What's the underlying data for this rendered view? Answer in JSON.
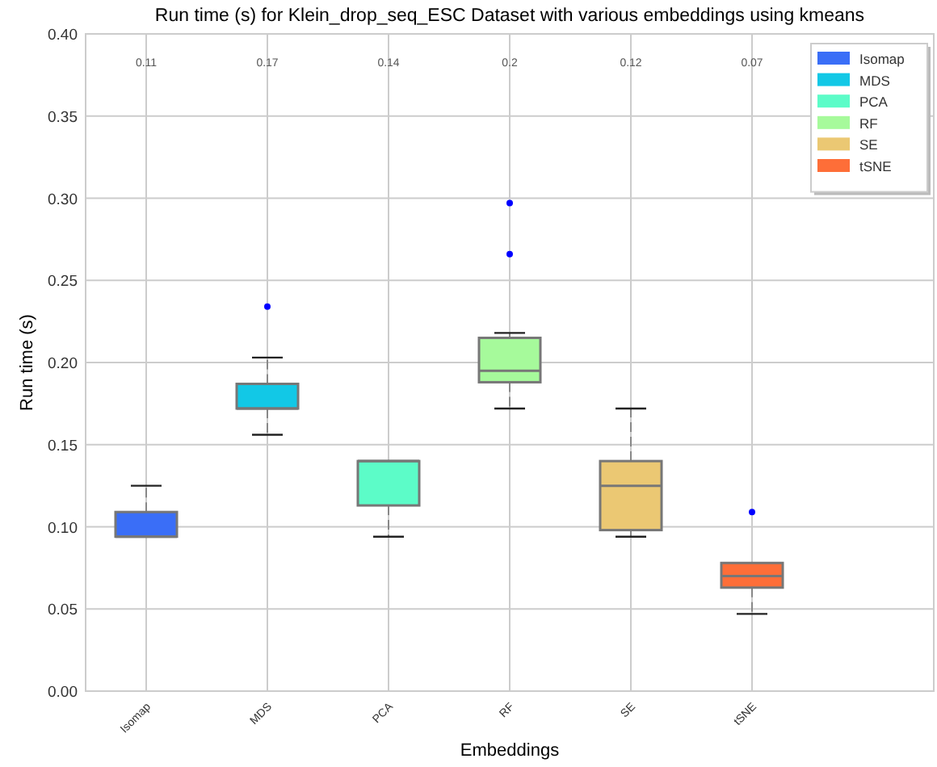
{
  "chart_data": {
    "type": "box",
    "title": "Run time (s) for Klein_drop_seq_ESC Dataset with various embeddings using kmeans",
    "xlabel": "Embeddings",
    "ylabel": "Run time (s)",
    "categories": [
      "Isomap",
      "MDS",
      "PCA",
      "RF",
      "SE",
      "tSNE"
    ],
    "series": [
      {
        "name": "Isomap",
        "color": "#3a6ef7",
        "boxes": [
          {
            "low": 0.094,
            "q1": 0.094,
            "median": 0.094,
            "q3": 0.109,
            "high": 0.125
          },
          null,
          null,
          null,
          null,
          null
        ]
      },
      {
        "name": "MDS",
        "color": "#12c8e6",
        "boxes": [
          null,
          {
            "low": 0.156,
            "q1": 0.172,
            "median": 0.172,
            "q3": 0.187,
            "high": 0.203,
            "outliers": [
              0.234
            ]
          },
          null,
          null,
          null,
          null
        ]
      },
      {
        "name": "PCA",
        "color": "#5cfcc8",
        "boxes": [
          null,
          null,
          {
            "low": 0.094,
            "q1": 0.113,
            "median": 0.14,
            "q3": 0.14,
            "high": 0.14
          },
          null,
          null,
          null
        ]
      },
      {
        "name": "RF",
        "color": "#a6fa9b",
        "boxes": [
          null,
          null,
          null,
          {
            "low": 0.172,
            "q1": 0.188,
            "median": 0.195,
            "q3": 0.215,
            "high": 0.218,
            "outliers": [
              0.266,
              0.297
            ]
          },
          null,
          null
        ]
      },
      {
        "name": "SE",
        "color": "#ebc873",
        "boxes": [
          null,
          null,
          null,
          null,
          {
            "low": 0.094,
            "q1": 0.098,
            "median": 0.125,
            "q3": 0.14,
            "high": 0.172
          },
          null
        ]
      },
      {
        "name": "tSNE",
        "color": "#fe6e38",
        "boxes": [
          null,
          null,
          null,
          null,
          null,
          {
            "low": 0.047,
            "q1": 0.063,
            "median": 0.07,
            "q3": 0.078,
            "high": 0.078,
            "outliers": [
              0.109
            ]
          }
        ]
      }
    ],
    "annotations": [
      "0.11",
      "0.17",
      "0.14",
      "0.2",
      "0.12",
      "0.07"
    ],
    "ylim": [
      0,
      0.4
    ],
    "yticks": [
      {
        "value": 0,
        "label": "0.00"
      },
      {
        "value": 0.05,
        "label": "0.05"
      },
      {
        "value": 0.1,
        "label": "0.10"
      },
      {
        "value": 0.15,
        "label": "0.15"
      },
      {
        "value": 0.2,
        "label": "0.20"
      },
      {
        "value": 0.25,
        "label": "0.25"
      },
      {
        "value": 0.3,
        "label": "0.30"
      },
      {
        "value": 0.35,
        "label": "0.35"
      },
      {
        "value": 0.4,
        "label": "0.40"
      }
    ],
    "grid": true,
    "legend": "top right"
  }
}
